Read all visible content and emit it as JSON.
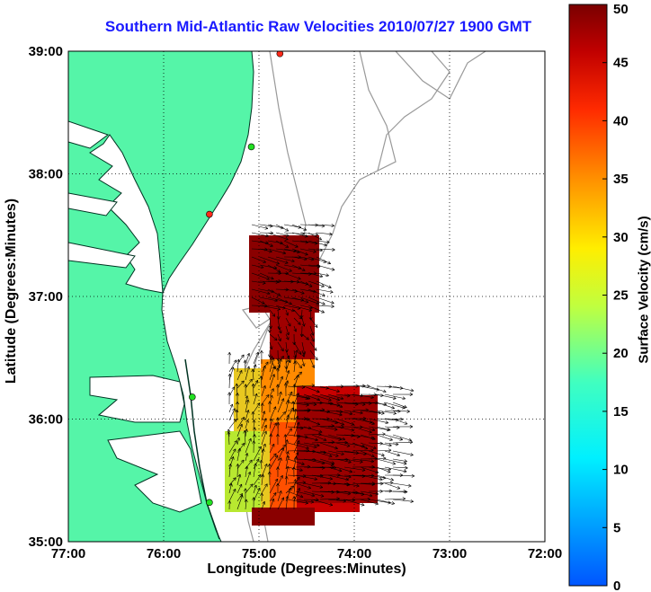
{
  "title": "Southern Mid-Atlantic Raw Velocities 2010/07/27 1900 GMT",
  "map": {
    "xlabel": "Longitude (Degrees:Minutes)",
    "ylabel": "Latitude (Degrees:Minutes)",
    "lon_range": [
      -77,
      -72
    ],
    "lat_range": [
      35,
      39
    ],
    "x_ticks": [
      {
        "value": -77,
        "label": "77:00"
      },
      {
        "value": -76,
        "label": "76:00"
      },
      {
        "value": -75,
        "label": "75:00"
      },
      {
        "value": -74,
        "label": "74:00"
      },
      {
        "value": -73,
        "label": "73:00"
      },
      {
        "value": -72,
        "label": "72:00"
      }
    ],
    "y_ticks": [
      {
        "value": 35,
        "label": "35:00"
      },
      {
        "value": 36,
        "label": "36:00"
      },
      {
        "value": 37,
        "label": "37:00"
      },
      {
        "value": 38,
        "label": "38:00"
      },
      {
        "value": 39,
        "label": "39:00"
      }
    ],
    "grid": "dotted",
    "land_color": "#55f5a8",
    "stations": [
      {
        "lon": -74.78,
        "lat": 38.98,
        "color": "#ff2a1a"
      },
      {
        "lon": -75.08,
        "lat": 38.22,
        "color": "#22e022"
      },
      {
        "lon": -75.52,
        "lat": 37.67,
        "color": "#ff2a1a"
      },
      {
        "lon": -75.7,
        "lat": 36.18,
        "color": "#22e022"
      },
      {
        "lon": -75.52,
        "lat": 35.32,
        "color": "#22e022"
      }
    ]
  },
  "colorbar": {
    "label": "Surface Velocity (cm/s)",
    "min": 0,
    "max": 50,
    "ticks": [
      "0",
      "5",
      "10",
      "15",
      "20",
      "25",
      "30",
      "35",
      "40",
      "45",
      "50"
    ],
    "colormap": "jet"
  }
}
